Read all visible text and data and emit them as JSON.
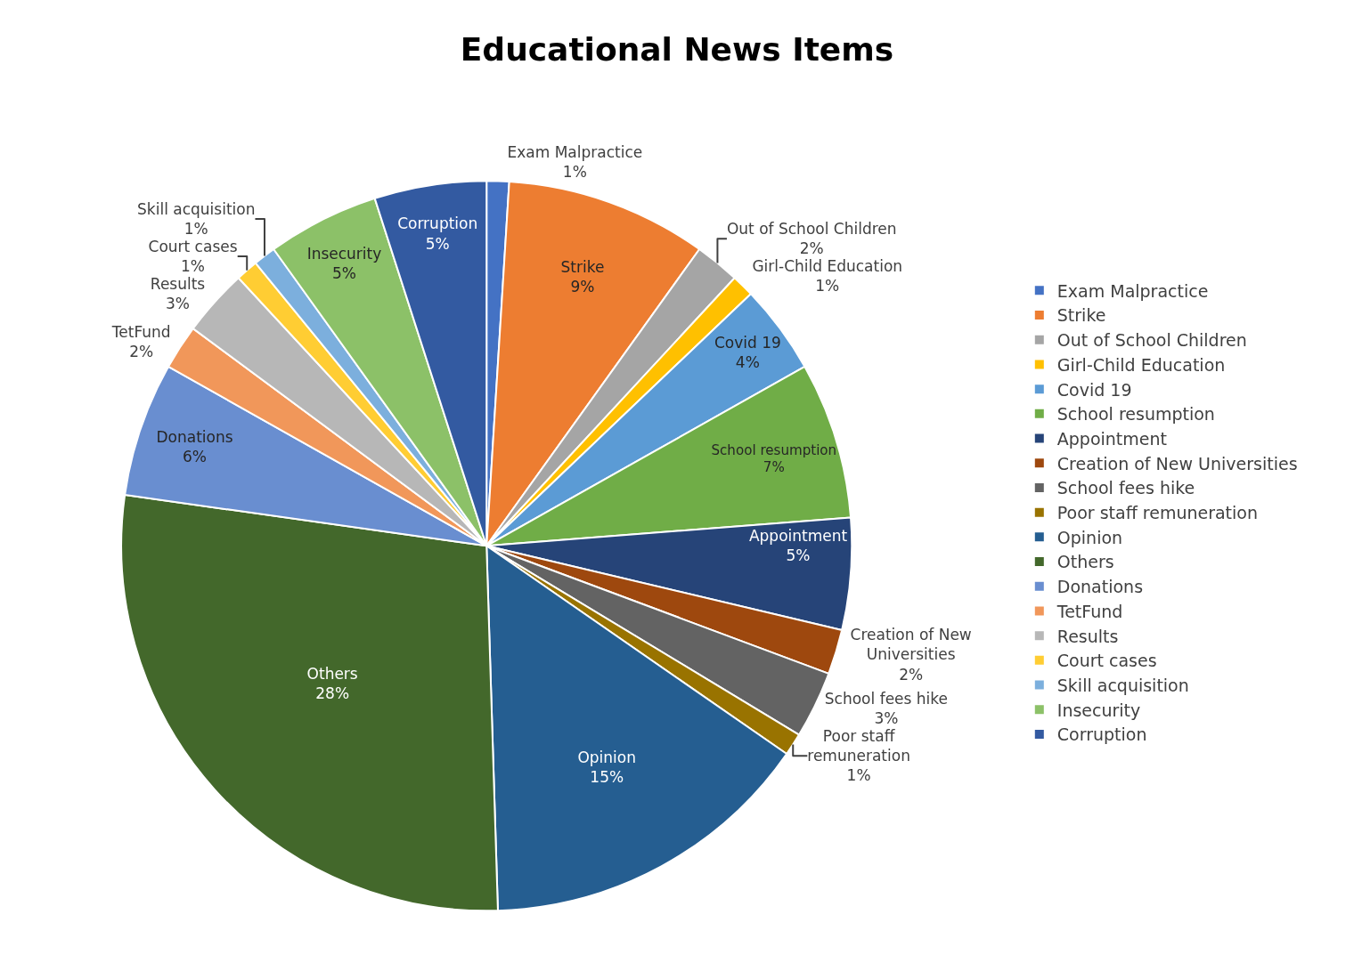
{
  "chart_data": {
    "type": "pie",
    "title": "Educational News Items",
    "categories": [
      "Exam Malpractice",
      "Strike",
      "Out of School Children",
      "Girl-Child Education",
      "Covid 19",
      "School resumption",
      "Appointment",
      "Creation of New Universities",
      "School fees hike",
      "Poor staff remuneration",
      "Opinion",
      "Others",
      "Donations",
      "TetFund",
      "Results",
      "Court cases",
      "Skill acquisition",
      "Insecurity",
      "Corruption"
    ],
    "values": [
      1,
      9,
      2,
      1,
      4,
      7,
      5,
      2,
      3,
      1,
      15,
      28,
      6,
      2,
      3,
      1,
      1,
      5,
      5
    ],
    "value_labels": [
      "1%",
      "9%",
      "2%",
      "1%",
      "4%",
      "7%",
      "5%",
      "2%",
      "3%",
      "1%",
      "15%",
      "28%",
      "6%",
      "2%",
      "3%",
      "1%",
      "1%",
      "5%",
      "5%"
    ],
    "colors": [
      "#4472c4",
      "#ed7d31",
      "#a5a5a5",
      "#ffc000",
      "#5b9bd5",
      "#70ad47",
      "#264478",
      "#9e480e",
      "#636363",
      "#997300",
      "#255e91",
      "#43682b",
      "#698ed0",
      "#f1975a",
      "#b7b7b7",
      "#ffcd33",
      "#7cafdd",
      "#8cc168",
      "#335aa1"
    ],
    "legend": "right"
  }
}
